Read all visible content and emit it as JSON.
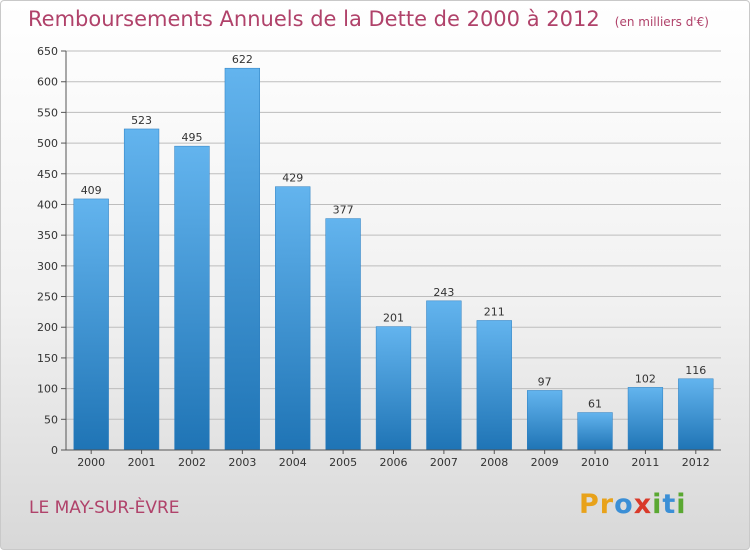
{
  "chart_data": {
    "type": "bar",
    "title": "Remboursements Annuels de la Dette de 2000 à 2012",
    "unit": "(en milliers d'€)",
    "categories": [
      "2000",
      "2001",
      "2002",
      "2003",
      "2004",
      "2005",
      "2006",
      "2007",
      "2008",
      "2009",
      "2010",
      "2011",
      "2012"
    ],
    "values": [
      409,
      523,
      495,
      622,
      429,
      377,
      201,
      243,
      211,
      97,
      61,
      102,
      116
    ],
    "value_labels": [
      "409",
      "523",
      "495",
      "622",
      "429",
      "377",
      "201",
      "243",
      "211",
      "97",
      "61",
      "102",
      "116"
    ],
    "ylim": [
      0,
      650
    ],
    "y_ticks": [
      0,
      50,
      100,
      150,
      200,
      250,
      300,
      350,
      400,
      450,
      500,
      550,
      600,
      650
    ],
    "y_tick_labels": [
      "0",
      "50",
      "100",
      "150",
      "200",
      "250",
      "300",
      "350",
      "400",
      "450",
      "500",
      "550",
      "600",
      "650"
    ],
    "grid": true,
    "xlabel": "",
    "ylabel": ""
  },
  "commune": "LE MAY-SUR-ÈVRE",
  "brand": {
    "letters": [
      {
        "char": "P",
        "color": "#e8a21a"
      },
      {
        "char": "r",
        "color": "#e8a21a"
      },
      {
        "char": "o",
        "color": "#3b8fd6"
      },
      {
        "char": "x",
        "color": "#d93a2a"
      },
      {
        "char": "i",
        "color": "#5aa832"
      },
      {
        "char": "t",
        "color": "#3b8fd6"
      },
      {
        "char": "i",
        "color": "#5aa832"
      }
    ]
  },
  "colors": {
    "bar_top": "#63b4ee",
    "bar_bottom": "#1f74b5",
    "grid": "#bdbdbd",
    "title": "#b0426a"
  }
}
